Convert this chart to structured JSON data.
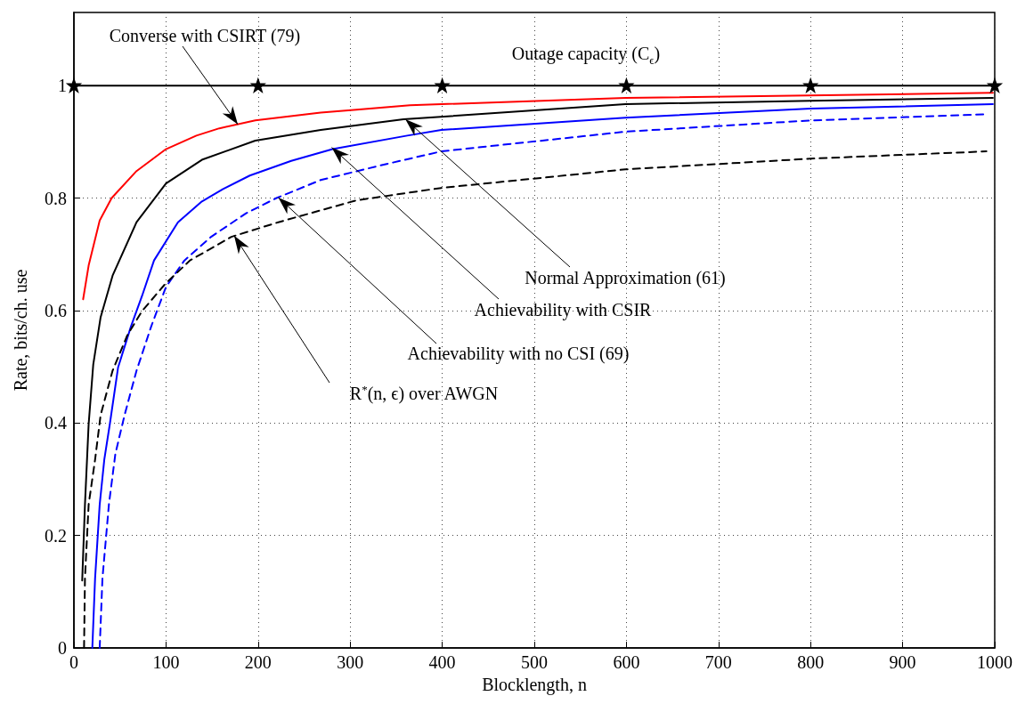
{
  "chart_data": {
    "type": "line",
    "xlabel": "Blocklength, n",
    "ylabel": "Rate, bits/ch. use",
    "xlim": [
      0,
      1000
    ],
    "xticks": [
      0,
      100,
      200,
      300,
      400,
      500,
      600,
      700,
      800,
      900,
      1000
    ],
    "ylim": [
      0,
      1.13
    ],
    "yticks": [
      0,
      0.2,
      0.4,
      0.6,
      0.8,
      1
    ],
    "grid": true,
    "series": [
      {
        "color": "#000000",
        "marker": "star",
        "line_style": "solid",
        "x": [
          0,
          200,
          400,
          600,
          800,
          1000
        ],
        "values": [
          1,
          1,
          1,
          1,
          1,
          1
        ]
      },
      {
        "color": "#ff0000",
        "marker": "none",
        "line_style": "solid",
        "x": [
          10,
          16,
          28,
          41,
          68,
          100,
          133,
          158,
          197,
          268,
          307,
          365,
          599,
          998
        ],
        "values": [
          0.62,
          0.68,
          0.76,
          0.8,
          0.848,
          0.887,
          0.911,
          0.924,
          0.938,
          0.952,
          0.957,
          0.965,
          0.978,
          0.987
        ]
      },
      {
        "color": "#000000",
        "marker": "none",
        "line_style": "solid",
        "x": [
          9,
          12,
          16,
          21,
          29,
          42,
          68,
          100,
          139,
          197,
          268,
          358,
          599,
          800,
          998
        ],
        "values": [
          0.12,
          0.255,
          0.398,
          0.504,
          0.588,
          0.662,
          0.757,
          0.826,
          0.868,
          0.902,
          0.921,
          0.94,
          0.967,
          0.973,
          0.978
        ]
      },
      {
        "color": "#0000ff",
        "marker": "none",
        "line_style": "solid",
        "x": [
          20,
          23,
          28,
          33,
          39,
          48,
          62,
          74,
          87,
          113,
          139,
          162,
          191,
          236,
          281,
          362,
          399,
          599,
          800,
          998
        ],
        "values": [
          0,
          0.124,
          0.255,
          0.335,
          0.398,
          0.499,
          0.572,
          0.626,
          0.689,
          0.757,
          0.794,
          0.816,
          0.84,
          0.866,
          0.887,
          0.911,
          0.921,
          0.943,
          0.959,
          0.967
        ]
      },
      {
        "color": "#0000ff",
        "marker": "none",
        "line_style": "dashed",
        "x": [
          28,
          31,
          38,
          45,
          55,
          68,
          84,
          100,
          120,
          149,
          187,
          220,
          268,
          333,
          399,
          599,
          800,
          991
        ],
        "values": [
          0,
          0.124,
          0.255,
          0.345,
          0.414,
          0.493,
          0.572,
          0.642,
          0.689,
          0.731,
          0.773,
          0.8,
          0.832,
          0.858,
          0.883,
          0.918,
          0.938,
          0.949
        ]
      },
      {
        "color": "#000000",
        "marker": "none",
        "line_style": "dashed",
        "x": [
          11,
          12,
          16,
          23,
          29,
          42,
          58,
          74,
          99,
          126,
          171,
          222,
          307,
          399,
          599,
          800,
          991
        ],
        "values": [
          0,
          0.124,
          0.255,
          0.335,
          0.414,
          0.493,
          0.556,
          0.599,
          0.647,
          0.689,
          0.731,
          0.757,
          0.796,
          0.818,
          0.851,
          0.87,
          0.883
        ]
      }
    ],
    "annotations": [
      {
        "text": "Converse with CSIRT (79)",
        "x": 178,
        "y": 0.931
      },
      "Outage capacity (C$_{ϵ}$)",
      {
        "text": "Normal Approximation (61)",
        "x": 360,
        "y": 0.94
      },
      {
        "text": "Achievability with CSIR",
        "x": 280,
        "y": 0.89
      },
      {
        "text": "Achievability with no CSI (69)",
        "x": 222,
        "y": 0.801
      },
      {
        "text": "R$^{*}$(n, ϵ) over AWGN",
        "x": 174,
        "y": 0.733
      }
    ]
  }
}
